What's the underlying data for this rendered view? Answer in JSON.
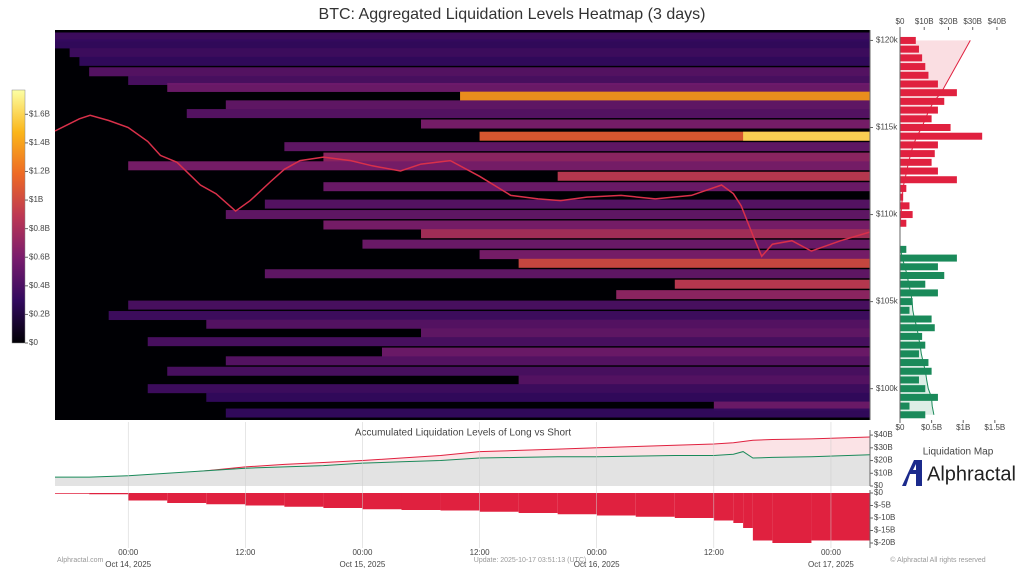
{
  "chart_data": [
    {
      "type": "heatmap",
      "title": "BTC: Aggregated Liquidation Levels Heatmap (3 days)",
      "xlim": [
        -7.5,
        76
      ],
      "ylim": [
        98200,
        120600
      ],
      "yticks": [
        {
          "value": 120000,
          "label": "$120k"
        },
        {
          "value": 115000,
          "label": "$115k"
        },
        {
          "value": 110000,
          "label": "$110k"
        },
        {
          "value": 105000,
          "label": "$105k"
        },
        {
          "value": 100000,
          "label": "$100k"
        }
      ],
      "x": [
        -7.5,
        -5,
        -3.9,
        -2,
        0,
        2,
        3.3,
        5,
        7.4,
        9,
        11,
        12.5,
        14.6,
        16,
        17.6,
        20,
        22.8,
        25,
        27.9,
        30,
        33,
        36,
        39.2,
        42,
        44.3,
        47,
        50.5,
        54,
        57.7,
        60.8,
        62,
        62.8,
        64,
        64.9,
        66,
        68,
        70,
        73,
        76
      ],
      "values": [
        114800,
        115500,
        115700,
        115400,
        115000,
        114200,
        113400,
        113000,
        111700,
        111200,
        110200,
        110800,
        111900,
        112600,
        113100,
        113300,
        113100,
        112800,
        112500,
        112900,
        113100,
        112200,
        111100,
        110900,
        110800,
        111000,
        111100,
        110900,
        111100,
        111700,
        111200,
        110500,
        108800,
        107600,
        108300,
        108500,
        107900,
        108500,
        109000
      ],
      "color": "#d9304a",
      "levels": [
        120200,
        119800,
        119300,
        118800,
        118200,
        117700,
        117300,
        116800,
        116300,
        115800,
        115200,
        114500,
        114500,
        113900,
        113300,
        112800,
        112200,
        111600,
        110600,
        110000,
        109400,
        108900,
        108300,
        107700,
        107200,
        106600,
        106000,
        105400,
        104800,
        104200,
        103700,
        103200,
        102700,
        102100,
        101600,
        101000,
        100500,
        100000,
        99500,
        99000,
        98600
      ],
      "intensity": [
        0.35,
        0.3,
        0.35,
        0.3,
        0.45,
        0.4,
        0.55,
        1.35,
        0.5,
        0.45,
        0.6,
        1.1,
        1.6,
        0.5,
        0.7,
        0.6,
        0.9,
        0.55,
        0.45,
        0.5,
        0.6,
        0.8,
        0.55,
        0.6,
        1.0,
        0.5,
        0.9,
        0.7,
        0.4,
        0.35,
        0.45,
        0.5,
        0.4,
        0.55,
        0.45,
        0.4,
        0.45,
        0.35,
        0.3,
        0.55,
        0.3
      ],
      "start": [
        -7.5,
        -7.5,
        -6,
        -5,
        -4,
        0,
        4,
        34,
        10,
        6,
        30,
        36,
        63,
        16,
        20,
        0,
        44,
        20,
        14,
        10,
        20,
        30,
        24,
        36,
        40,
        14,
        56,
        50,
        0,
        -2,
        8,
        30,
        2,
        26,
        10,
        4,
        40,
        2,
        8,
        60,
        10
      ],
      "clim": [
        0,
        1.77
      ],
      "cticks": [
        {
          "value": 0,
          "label": "$0"
        },
        {
          "value": 0.2,
          "label": "$0.2B"
        },
        {
          "value": 0.4,
          "label": "$0.4B"
        },
        {
          "value": 0.6,
          "label": "$0.6B"
        },
        {
          "value": 0.8,
          "label": "$0.8B"
        },
        {
          "value": 1,
          "label": "$1B"
        },
        {
          "value": 1.2,
          "label": "$1.2B"
        },
        {
          "value": 1.4,
          "label": "$1.4B"
        },
        {
          "value": 1.6,
          "label": "$1.6B"
        }
      ],
      "colorscale": [
        "#000004",
        "#320a5e",
        "#781c6d",
        "#bc3754",
        "#ed6925",
        "#fbb61a",
        "#fcffa4"
      ]
    },
    {
      "type": "hbar",
      "title": "Liquidation Map",
      "ylim": [
        98200,
        120600
      ],
      "xlim": [
        0,
        1.74
      ],
      "x2lim": [
        0,
        45.4
      ],
      "xticks": [
        {
          "value": 0,
          "label": "$0"
        },
        {
          "value": 0.5,
          "label": "$0.5B"
        },
        {
          "value": 1,
          "label": "$1B"
        },
        {
          "value": 1.5,
          "label": "$1.5B"
        }
      ],
      "x2ticks": [
        {
          "value": 0,
          "label": "$0"
        },
        {
          "value": 10,
          "label": "$10B"
        },
        {
          "value": 20,
          "label": "$20B"
        },
        {
          "value": 30,
          "label": "$30B"
        },
        {
          "value": 40,
          "label": "$40B"
        }
      ],
      "series": [
        {
          "color": "#e0213f",
          "prices": [
            120000,
            119500,
            119000,
            118500,
            118000,
            117500,
            117000,
            116500,
            116000,
            115500,
            115000,
            114500,
            114000,
            113500,
            113000,
            112500,
            112000,
            111500,
            111000,
            110500,
            110000,
            109500
          ],
          "values": [
            0.25,
            0.3,
            0.35,
            0.4,
            0.45,
            0.6,
            0.9,
            0.7,
            0.6,
            0.5,
            0.8,
            1.3,
            0.6,
            0.55,
            0.5,
            0.6,
            0.9,
            0.1,
            0.05,
            0.15,
            0.2,
            0.1
          ],
          "cumulative": [
            29,
            27,
            25,
            23,
            21,
            19,
            17,
            14,
            12,
            10.5,
            9,
            7,
            5.5,
            4.5,
            3.5,
            2.8,
            2,
            1.2,
            1,
            0.7,
            0.4,
            0.1
          ]
        },
        {
          "color": "#1a8a5a",
          "prices": [
            108000,
            107500,
            107000,
            106500,
            106000,
            105500,
            105000,
            104500,
            104000,
            103500,
            103000,
            102500,
            102000,
            101500,
            101000,
            100500,
            100000,
            99500,
            99000,
            98500
          ],
          "values": [
            0.1,
            0.9,
            0.6,
            0.7,
            0.4,
            0.6,
            0.2,
            0.15,
            0.5,
            0.55,
            0.35,
            0.4,
            0.3,
            0.45,
            0.5,
            0.3,
            0.4,
            0.6,
            0.15,
            0.4
          ],
          "cumulative": [
            0.2,
            1,
            2,
            3,
            3.6,
            4.5,
            5,
            5.3,
            6,
            7,
            7.6,
            8.3,
            8.8,
            9.6,
            10.5,
            11,
            11.7,
            13,
            13.3,
            14
          ]
        }
      ]
    },
    {
      "type": "area",
      "title": "Accumulated Liquidation Levels of Long vs Short",
      "xlim": [
        -7.5,
        76
      ],
      "ylim": [
        0,
        44
      ],
      "yticks": [
        {
          "value": 0,
          "label": "$0"
        },
        {
          "value": 10,
          "label": "$10B"
        },
        {
          "value": 20,
          "label": "$20B"
        },
        {
          "value": 30,
          "label": "$30B"
        },
        {
          "value": 40,
          "label": "$40B"
        }
      ],
      "x": [
        -7.5,
        -4,
        0,
        4,
        8,
        12,
        16,
        20,
        24,
        28,
        32,
        36,
        40,
        44,
        48,
        52,
        56,
        60,
        62,
        63,
        64,
        66,
        70,
        76
      ],
      "series": [
        {
          "color": "#e0213f",
          "fill": "#fbe3e6",
          "values": [
            2,
            3,
            5,
            9,
            12,
            15,
            17,
            18.5,
            20,
            22,
            24,
            27,
            28,
            29,
            30,
            31,
            32,
            33,
            34,
            35,
            36,
            36.5,
            37,
            38.5
          ]
        },
        {
          "color": "#1a8a5a",
          "fill": "#e3e3e3",
          "values": [
            7,
            7,
            8,
            10,
            12,
            14,
            15,
            16,
            18,
            19,
            20,
            22,
            22.5,
            23,
            23,
            23.5,
            24,
            24,
            25,
            27,
            22,
            22.5,
            23,
            24.5
          ]
        }
      ]
    },
    {
      "type": "bar",
      "xlim": [
        -7.5,
        76
      ],
      "ylim": [
        -22,
        1.2
      ],
      "color": "#e0213f",
      "yticks": [
        {
          "value": 0,
          "label": "$0"
        },
        {
          "value": -5,
          "label": "$-5B"
        },
        {
          "value": -10,
          "label": "$-10B"
        },
        {
          "value": -15,
          "label": "$-15B"
        },
        {
          "value": -20,
          "label": "$-20B"
        }
      ],
      "x": [
        -7.5,
        -4,
        0,
        4,
        8,
        12,
        16,
        20,
        24,
        28,
        32,
        36,
        40,
        44,
        48,
        52,
        56,
        60,
        62,
        63,
        64,
        66,
        70,
        76
      ],
      "values": [
        -0.3,
        -0.5,
        -3,
        -4,
        -4.5,
        -5,
        -5.5,
        -6,
        -6.5,
        -6.8,
        -7,
        -7.5,
        -8,
        -8.5,
        -9,
        -9.5,
        -10,
        -11,
        -12,
        -14,
        -19,
        -20,
        -19,
        -18
      ],
      "xticks": [
        {
          "value": 0,
          "label": "00:00",
          "date": "Oct 14, 2025"
        },
        {
          "value": 12,
          "label": "12:00"
        },
        {
          "value": 24,
          "label": "00:00",
          "date": "Oct 15, 2025"
        },
        {
          "value": 36,
          "label": "12:00"
        },
        {
          "value": 48,
          "label": "00:00",
          "date": "Oct 16, 2025"
        },
        {
          "value": 60,
          "label": "12:00"
        },
        {
          "value": 72,
          "label": "00:00",
          "date": "Oct 17, 2025"
        }
      ]
    }
  ],
  "branding": {
    "name": "Alphractal",
    "site": "Alphractal.com",
    "update": "Update: 2025-10-17 03:51:13 (UTC)",
    "copyright": "© Alphractal All rights reserved"
  }
}
